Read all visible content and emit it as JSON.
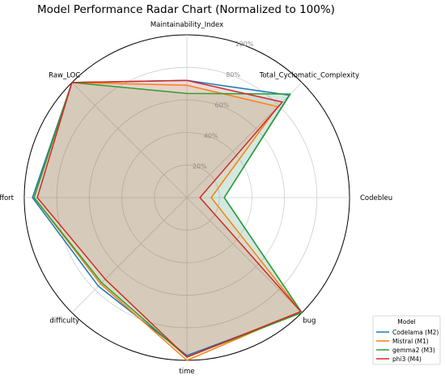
{
  "chart_data": {
    "type": "radar",
    "title": "Model Performance Radar Chart (Normalized to 100%)",
    "axes": [
      "Maintainability_Index",
      "Total_Cyclomatic_Complexity",
      "Codebleu",
      "bug",
      "time",
      "difficulty",
      "effort",
      "Raw_LOC"
    ],
    "r_ticks": [
      "20%",
      "40%",
      "60%",
      "80%",
      "100%"
    ],
    "rlim": [
      0,
      100
    ],
    "grid": true,
    "legend": {
      "title": "Model",
      "placement": "bottom-right"
    },
    "series": [
      {
        "name": "Codelama (M2)",
        "color": "#1f77b4",
        "values": [
          72,
          89,
          23,
          100,
          97,
          77,
          95,
          100
        ]
      },
      {
        "name": "Mistral (M1)",
        "color": "#ff7f0e",
        "values": [
          69,
          79,
          15,
          99,
          100,
          75,
          94,
          100
        ]
      },
      {
        "name": "gemma2 (M3)",
        "color": "#2ca02c",
        "values": [
          64,
          90,
          23,
          100,
          98,
          74,
          94,
          100
        ]
      },
      {
        "name": "phi3 (M4)",
        "color": "#d62728",
        "values": [
          72,
          83,
          8,
          99,
          98,
          71,
          92,
          100
        ]
      }
    ],
    "fill_color": "#c8b4a0"
  }
}
